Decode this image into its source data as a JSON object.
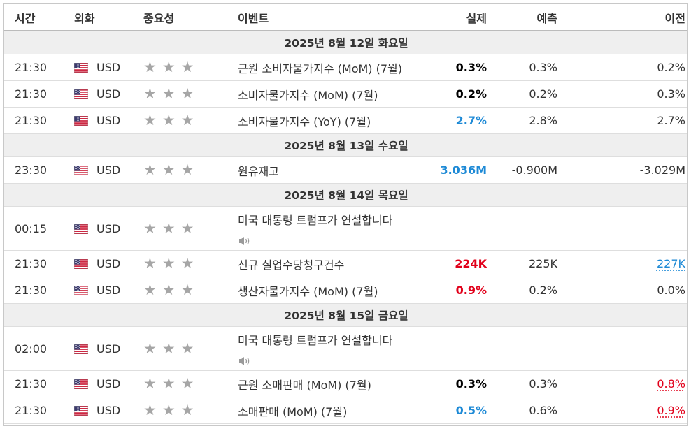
{
  "header": {
    "time": "시간",
    "currency": "외화",
    "importance": "중요성",
    "event": "이벤트",
    "actual": "실제",
    "forecast": "예측",
    "previous": "이전"
  },
  "groups": [
    {
      "date": "2025년 8월 12일 화요일",
      "rows": [
        {
          "time": "21:30",
          "currency": "USD",
          "event": "근원 소비자물가지수 (MoM) (7월)",
          "actual": "0.3%",
          "actual_color": "black",
          "forecast": "0.3%",
          "previous": "0.2%",
          "previous_style": "plain"
        },
        {
          "time": "21:30",
          "currency": "USD",
          "event": "소비자물가지수 (MoM) (7월)",
          "actual": "0.2%",
          "actual_color": "black",
          "forecast": "0.2%",
          "previous": "0.3%",
          "previous_style": "plain"
        },
        {
          "time": "21:30",
          "currency": "USD",
          "event": "소비자물가지수 (YoY) (7월)",
          "actual": "2.7%",
          "actual_color": "blue",
          "forecast": "2.8%",
          "previous": "2.7%",
          "previous_style": "plain"
        }
      ]
    },
    {
      "date": "2025년 8월 13일 수요일",
      "rows": [
        {
          "time": "23:30",
          "currency": "USD",
          "event": "원유재고",
          "actual": "3.036M",
          "actual_color": "blue",
          "forecast": "-0.900M",
          "previous": "-3.029M",
          "previous_style": "plain"
        }
      ]
    },
    {
      "date": "2025년 8월 14일 목요일",
      "rows": [
        {
          "time": "00:15",
          "currency": "USD",
          "event": "미국 대통령 트럼프가 연설합니다",
          "speech": true,
          "actual": "",
          "actual_color": "black",
          "forecast": "",
          "previous": "",
          "previous_style": "plain"
        },
        {
          "time": "21:30",
          "currency": "USD",
          "event": "신규 실업수당청구건수",
          "actual": "224K",
          "actual_color": "red",
          "forecast": "225K",
          "previous": "227K",
          "previous_style": "link-blue"
        },
        {
          "time": "21:30",
          "currency": "USD",
          "event": "생산자물가지수 (MoM) (7월)",
          "actual": "0.9%",
          "actual_color": "red",
          "forecast": "0.2%",
          "previous": "0.0%",
          "previous_style": "plain"
        }
      ]
    },
    {
      "date": "2025년 8월 15일 금요일",
      "rows": [
        {
          "time": "02:00",
          "currency": "USD",
          "event": "미국 대통령 트럼프가 연설합니다",
          "speech": true,
          "actual": "",
          "actual_color": "black",
          "forecast": "",
          "previous": "",
          "previous_style": "plain"
        },
        {
          "time": "21:30",
          "currency": "USD",
          "event": "근원 소매판매 (MoM) (7월)",
          "actual": "0.3%",
          "actual_color": "black",
          "forecast": "0.3%",
          "previous": "0.8%",
          "previous_style": "link-red"
        },
        {
          "time": "21:30",
          "currency": "USD",
          "event": "소매판매 (MoM) (7월)",
          "actual": "0.5%",
          "actual_color": "blue",
          "forecast": "0.6%",
          "previous": "0.9%",
          "previous_style": "link-red"
        }
      ]
    }
  ],
  "icons": {
    "flag": "us-flag-icon",
    "star": "star-icon",
    "speaker": "speaker-icon"
  },
  "colors": {
    "actual_blue": "#1e8ad6",
    "actual_red": "#e1001a",
    "star_gray": "#a6a6a6",
    "day_row_bg": "#efefef"
  }
}
